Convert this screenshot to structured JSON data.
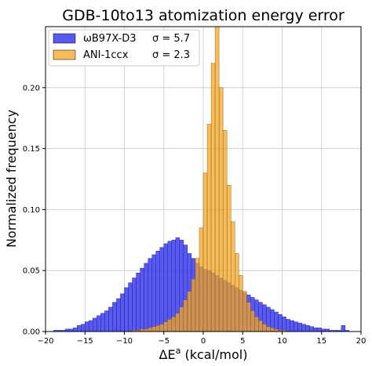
{
  "chart_data": {
    "type": "bar",
    "title": "GDB-10to13 atomization energy error",
    "xlabel": "ΔE",
    "xlabel_sup": "a",
    "xlabel_unit": " (kcal/mol)",
    "ylabel": "Normalized frequency",
    "xlim": [
      -20,
      20
    ],
    "ylim": [
      0,
      0.25
    ],
    "xticks": [
      -20,
      -15,
      -10,
      -5,
      0,
      5,
      10,
      15,
      20
    ],
    "xtick_labels": [
      "−20",
      "−15",
      "−10",
      "−5",
      "0",
      "5",
      "10",
      "15",
      "20"
    ],
    "yticks": [
      0.0,
      0.05,
      0.1,
      0.15,
      0.2
    ],
    "ytick_labels": [
      "0.00",
      "0.05",
      "0.10",
      "0.15",
      "0.20"
    ],
    "grid": true,
    "legend_position": "top-left",
    "bin_width": 0.5,
    "series": [
      {
        "name": "ωB97X-D3",
        "sigma_text": "σ = 5.7",
        "color": "#3b3bf0",
        "bins": [
          [
            -19.0,
            0.001
          ],
          [
            -18.5,
            0.001
          ],
          [
            -18.0,
            0.001
          ],
          [
            -17.5,
            0.002
          ],
          [
            -17.0,
            0.002
          ],
          [
            -16.5,
            0.003
          ],
          [
            -16.0,
            0.005
          ],
          [
            -15.5,
            0.006
          ],
          [
            -15.0,
            0.008
          ],
          [
            -14.5,
            0.009
          ],
          [
            -14.0,
            0.011
          ],
          [
            -13.5,
            0.013
          ],
          [
            -13.0,
            0.015
          ],
          [
            -12.5,
            0.017
          ],
          [
            -12.0,
            0.02
          ],
          [
            -11.5,
            0.024
          ],
          [
            -11.0,
            0.027
          ],
          [
            -10.5,
            0.031
          ],
          [
            -10.0,
            0.036
          ],
          [
            -9.5,
            0.04
          ],
          [
            -9.0,
            0.044
          ],
          [
            -8.5,
            0.048
          ],
          [
            -8.0,
            0.052
          ],
          [
            -7.5,
            0.056
          ],
          [
            -7.0,
            0.06
          ],
          [
            -6.5,
            0.063
          ],
          [
            -6.0,
            0.066
          ],
          [
            -5.5,
            0.069
          ],
          [
            -5.0,
            0.072
          ],
          [
            -4.5,
            0.074
          ],
          [
            -4.0,
            0.075
          ],
          [
            -3.5,
            0.077
          ],
          [
            -3.0,
            0.075
          ],
          [
            -2.5,
            0.071
          ],
          [
            -2.0,
            0.064
          ],
          [
            -1.5,
            0.06
          ],
          [
            -1.0,
            0.056
          ],
          [
            -0.5,
            0.053
          ],
          [
            0.0,
            0.051
          ],
          [
            0.5,
            0.05
          ],
          [
            1.0,
            0.048
          ],
          [
            1.5,
            0.046
          ],
          [
            2.0,
            0.044
          ],
          [
            2.5,
            0.042
          ],
          [
            3.0,
            0.04
          ],
          [
            3.5,
            0.038
          ],
          [
            4.0,
            0.036
          ],
          [
            4.5,
            0.034
          ],
          [
            5.0,
            0.032
          ],
          [
            5.5,
            0.03
          ],
          [
            6.0,
            0.028
          ],
          [
            6.5,
            0.026
          ],
          [
            7.0,
            0.024
          ],
          [
            7.5,
            0.022
          ],
          [
            8.0,
            0.02
          ],
          [
            8.5,
            0.018
          ],
          [
            9.0,
            0.016
          ],
          [
            9.5,
            0.014
          ],
          [
            10.0,
            0.012
          ],
          [
            10.5,
            0.01
          ],
          [
            11.0,
            0.009
          ],
          [
            11.5,
            0.008
          ],
          [
            12.0,
            0.007
          ],
          [
            12.5,
            0.006
          ],
          [
            13.0,
            0.005
          ],
          [
            13.5,
            0.004
          ],
          [
            14.0,
            0.003
          ],
          [
            14.5,
            0.003
          ],
          [
            15.0,
            0.002
          ],
          [
            15.5,
            0.002
          ],
          [
            16.0,
            0.001
          ],
          [
            16.5,
            0.001
          ],
          [
            17.0,
            0.001
          ],
          [
            17.5,
            0.005
          ],
          [
            18.0,
            0.001
          ]
        ]
      },
      {
        "name": "ANI-1ccx",
        "sigma_text": "σ = 2.3",
        "color": "#f5a623",
        "bins": [
          [
            -9.5,
            0.0005
          ],
          [
            -9.0,
            0.001
          ],
          [
            -8.5,
            0.001
          ],
          [
            -8.0,
            0.002
          ],
          [
            -7.5,
            0.002
          ],
          [
            -7.0,
            0.003
          ],
          [
            -6.5,
            0.004
          ],
          [
            -6.0,
            0.005
          ],
          [
            -5.5,
            0.006
          ],
          [
            -5.0,
            0.008
          ],
          [
            -4.5,
            0.01
          ],
          [
            -4.0,
            0.012
          ],
          [
            -3.5,
            0.015
          ],
          [
            -3.0,
            0.02
          ],
          [
            -2.5,
            0.026
          ],
          [
            -2.0,
            0.033
          ],
          [
            -1.5,
            0.043
          ],
          [
            -1.0,
            0.06
          ],
          [
            -0.5,
            0.085
          ],
          [
            0.0,
            0.13
          ],
          [
            0.5,
            0.17
          ],
          [
            1.0,
            0.22
          ],
          [
            1.5,
            0.25
          ],
          [
            2.0,
            0.2
          ],
          [
            2.5,
            0.165
          ],
          [
            3.0,
            0.12
          ],
          [
            3.5,
            0.09
          ],
          [
            4.0,
            0.064
          ],
          [
            4.5,
            0.046
          ],
          [
            5.0,
            0.033
          ],
          [
            5.5,
            0.024
          ],
          [
            6.0,
            0.017
          ],
          [
            6.5,
            0.012
          ],
          [
            7.0,
            0.009
          ],
          [
            7.5,
            0.006
          ],
          [
            8.0,
            0.004
          ],
          [
            8.5,
            0.003
          ],
          [
            9.0,
            0.002
          ],
          [
            9.5,
            0.001
          ],
          [
            10.0,
            0.001
          ]
        ]
      }
    ]
  }
}
